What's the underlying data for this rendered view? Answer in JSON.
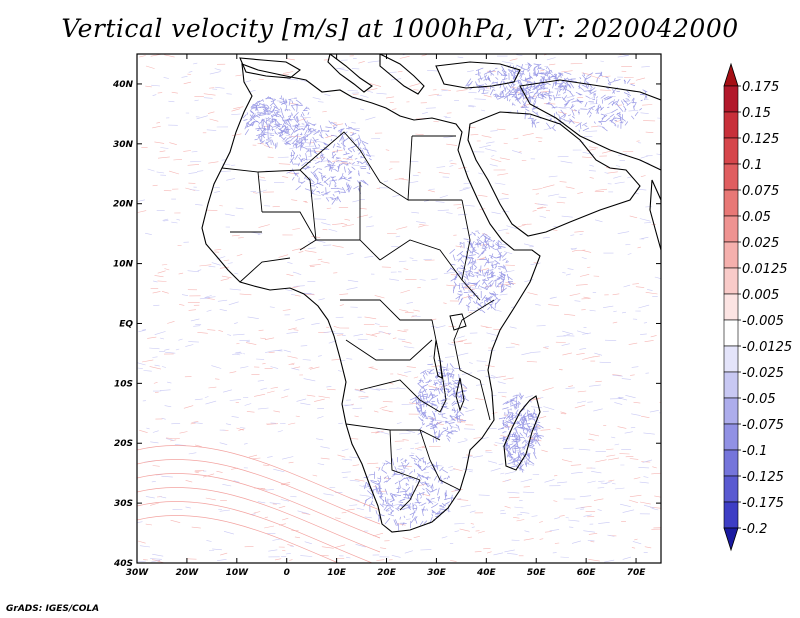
{
  "title": "Vertical velocity [m/s] at 1000hPa, VT: 2020042000",
  "footer": "GrADS: IGES/COLA",
  "map": {
    "lon_range": [
      -30,
      75
    ],
    "lat_range": [
      -40,
      45
    ],
    "x_ticks": [
      {
        "value": -30,
        "label": "30W"
      },
      {
        "value": -20,
        "label": "20W"
      },
      {
        "value": -10,
        "label": "10W"
      },
      {
        "value": 0,
        "label": "0"
      },
      {
        "value": 10,
        "label": "10E"
      },
      {
        "value": 20,
        "label": "20E"
      },
      {
        "value": 30,
        "label": "30E"
      },
      {
        "value": 40,
        "label": "40E"
      },
      {
        "value": 50,
        "label": "50E"
      },
      {
        "value": 60,
        "label": "60E"
      },
      {
        "value": 70,
        "label": "70E"
      }
    ],
    "y_ticks": [
      {
        "value": 40,
        "label": "40N"
      },
      {
        "value": 30,
        "label": "30N"
      },
      {
        "value": 20,
        "label": "20N"
      },
      {
        "value": 10,
        "label": "10N"
      },
      {
        "value": 0,
        "label": "EQ"
      },
      {
        "value": -10,
        "label": "10S"
      },
      {
        "value": -20,
        "label": "20S"
      },
      {
        "value": -30,
        "label": "30S"
      },
      {
        "value": -40,
        "label": "40S"
      }
    ]
  },
  "colorbar": {
    "levels": [
      {
        "label": "0.175",
        "color": "#b2182b"
      },
      {
        "label": "0.15",
        "color": "#c8303a"
      },
      {
        "label": "0.125",
        "color": "#d6464b"
      },
      {
        "label": "0.1",
        "color": "#e05e60"
      },
      {
        "label": "0.075",
        "color": "#e87876"
      },
      {
        "label": "0.05",
        "color": "#ef9391"
      },
      {
        "label": "0.025",
        "color": "#f5b0ad"
      },
      {
        "label": "0.0125",
        "color": "#f9cbc9"
      },
      {
        "label": "0.005",
        "color": "#fce4e3"
      },
      {
        "label": "-0.005",
        "color": "#ffffff"
      },
      {
        "label": "-0.0125",
        "color": "#e4e4fa"
      },
      {
        "label": "-0.025",
        "color": "#c8c8f3"
      },
      {
        "label": "-0.05",
        "color": "#adadec"
      },
      {
        "label": "-0.075",
        "color": "#9191e4"
      },
      {
        "label": "-0.1",
        "color": "#7575db"
      },
      {
        "label": "-0.125",
        "color": "#5a5ad1"
      },
      {
        "label": "-0.175",
        "color": "#3e3ec5"
      },
      {
        "label": "-0.2",
        "color": "#2424b5"
      }
    ],
    "top_arrow_color": "#a50f15",
    "bottom_arrow_color": "#1a1aa0"
  }
}
